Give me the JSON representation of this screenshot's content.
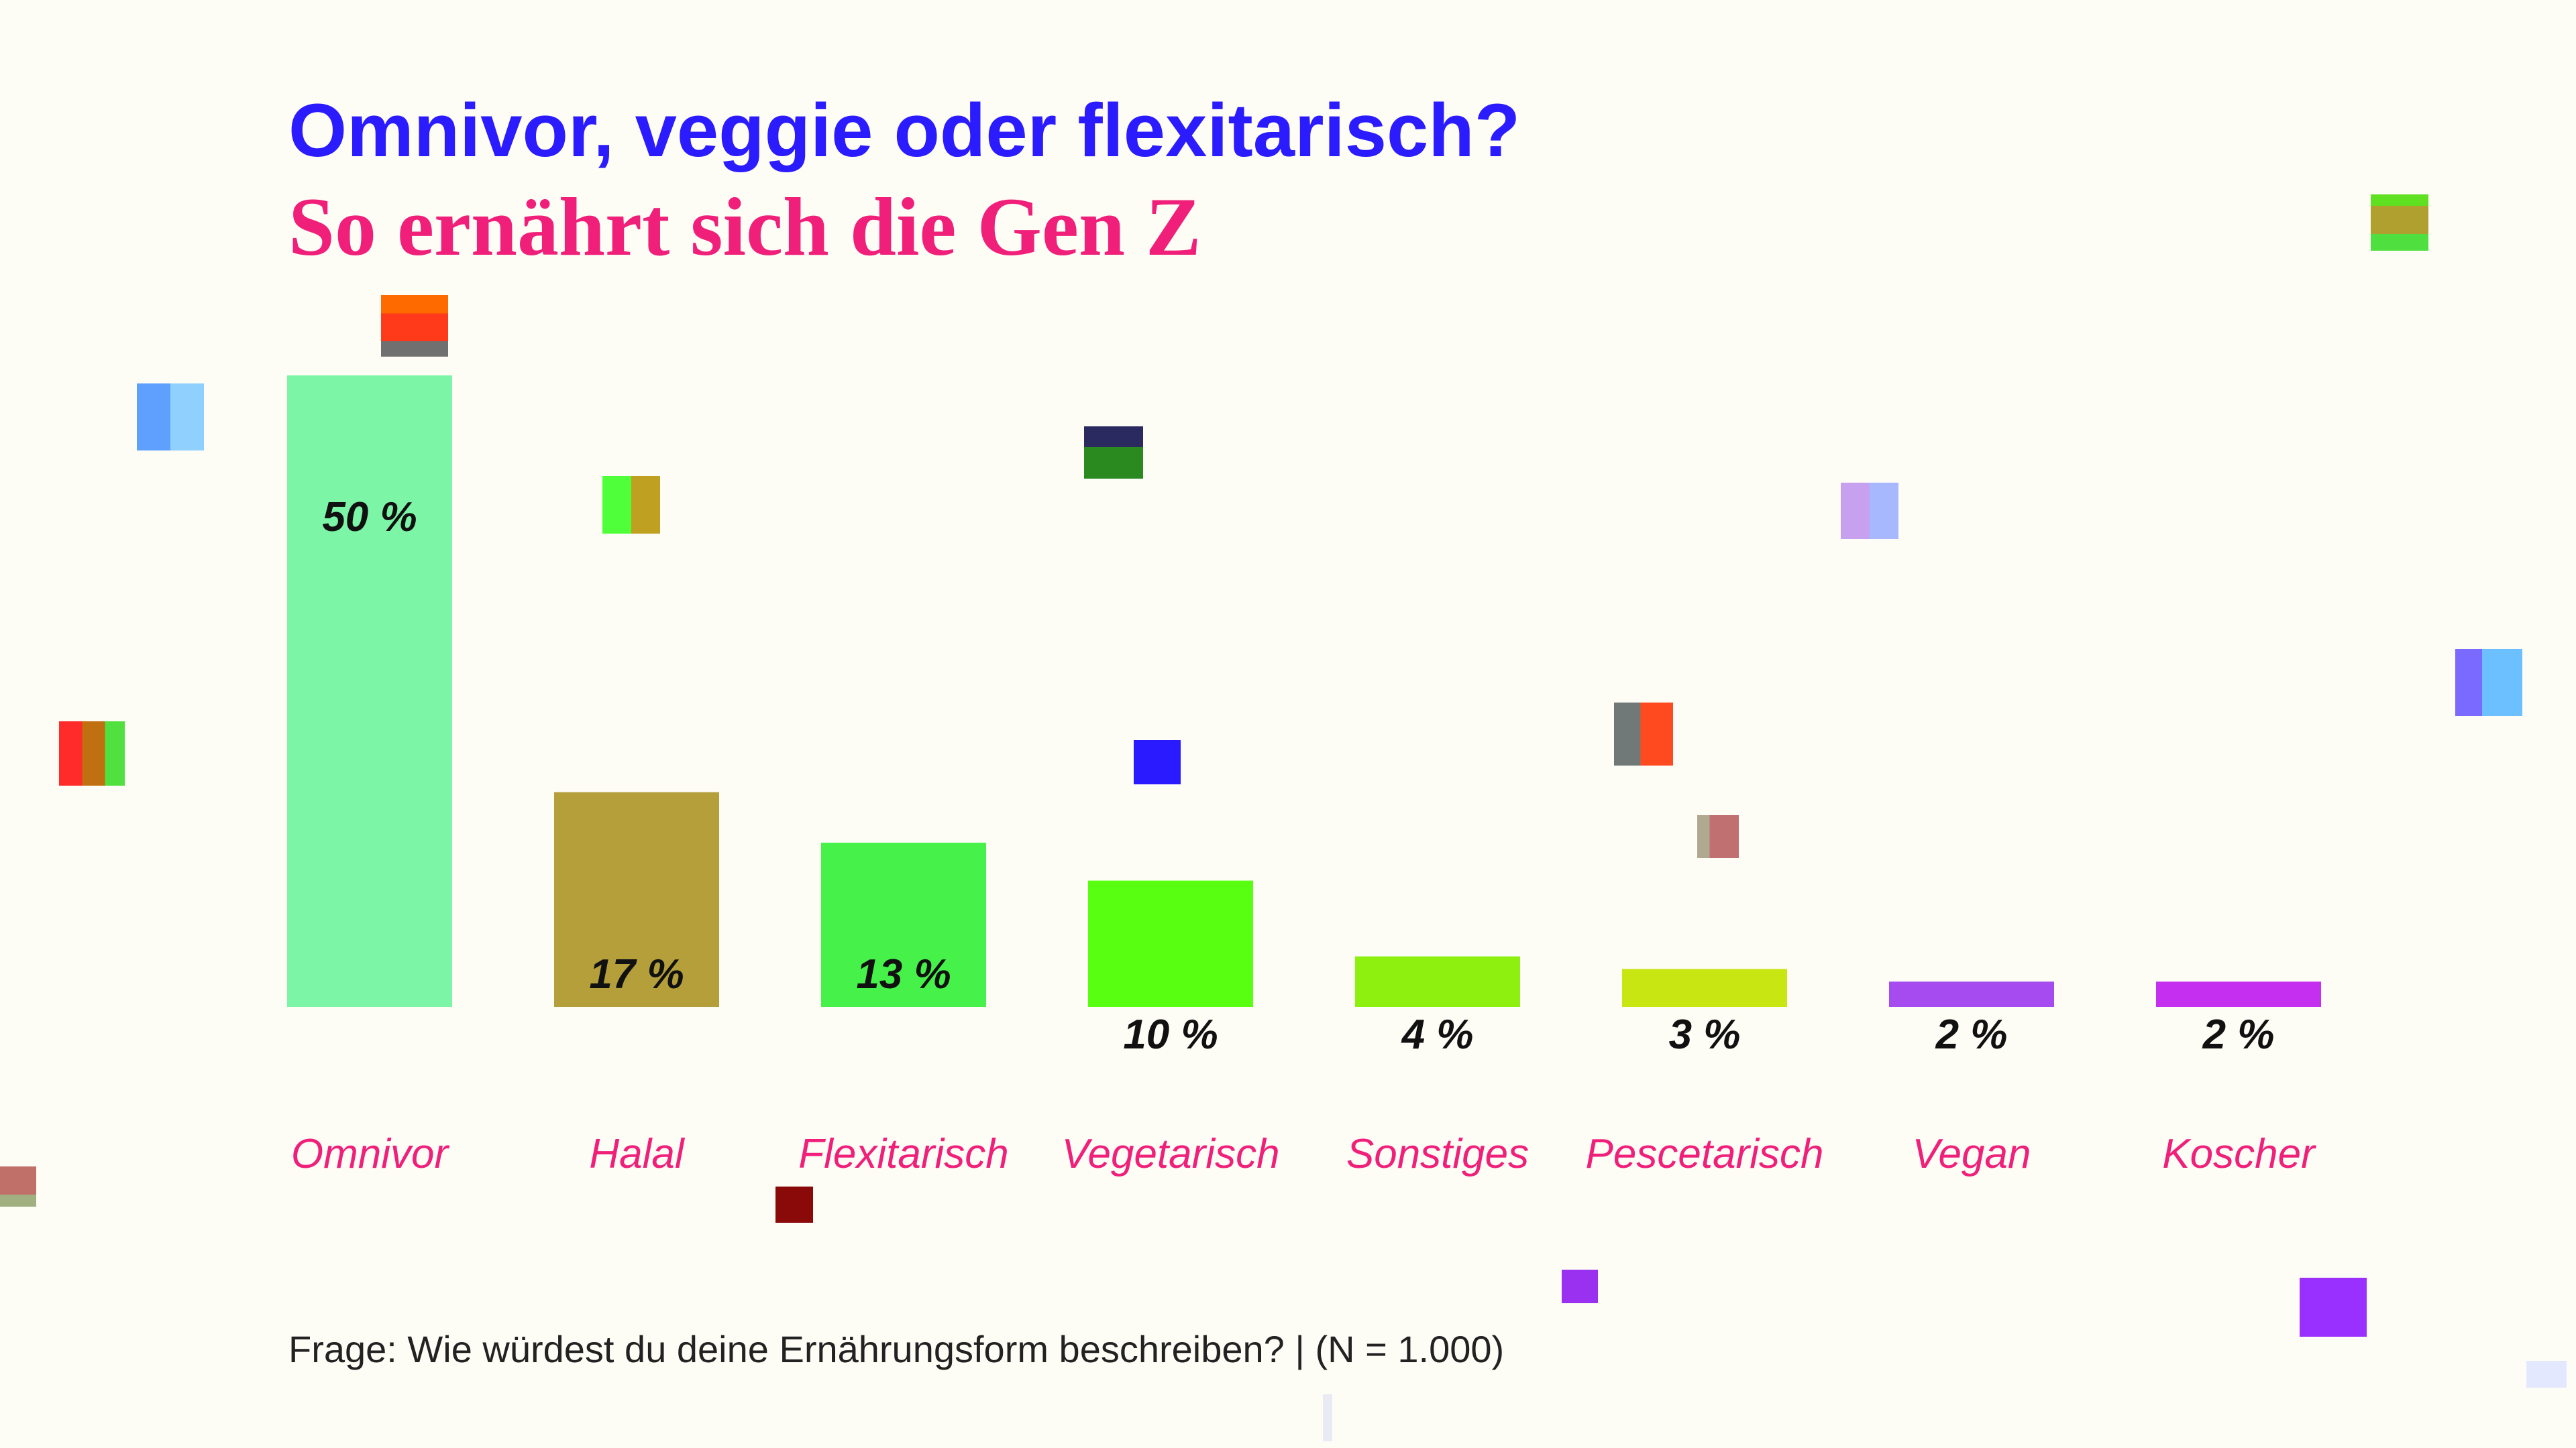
{
  "header": {
    "title": "Omnivor, veggie oder flexitarisch?",
    "subtitle": "So ernährt sich die Gen Z"
  },
  "footnote": "Frage: Wie würdest du deine Ernährungsform beschreiben? | (N = 1.000)",
  "colors": {
    "title": "#2b1bff",
    "subtitle": "#f0207a",
    "category_label": "#f0207a",
    "value_label": "#111111",
    "background": "#fdfcf5"
  },
  "chart_data": {
    "type": "bar",
    "title": "Omnivor, veggie oder flexitarisch?",
    "subtitle": "So ernährt sich die Gen Z",
    "categories": [
      "Omnivor",
      "Halal",
      "Flexitarisch",
      "Vegetarisch",
      "Sonstiges",
      "Pescetarisch",
      "Vegan",
      "Koscher"
    ],
    "values": [
      50,
      17,
      13,
      10,
      4,
      3,
      2,
      2
    ],
    "value_labels": [
      "50 %",
      "17 %",
      "13 %",
      "10 %",
      "4 %",
      "3 %",
      "2 %",
      "2 %"
    ],
    "bar_colors": [
      "#7df5a6",
      "#b59f3b",
      "#46f24a",
      "#58ff10",
      "#8ef00e",
      "#c8e612",
      "#a64bf0",
      "#c42ff0"
    ],
    "xlabel": "",
    "ylabel": "",
    "ylim": [
      0,
      50
    ],
    "grid": false,
    "legend": "none"
  }
}
